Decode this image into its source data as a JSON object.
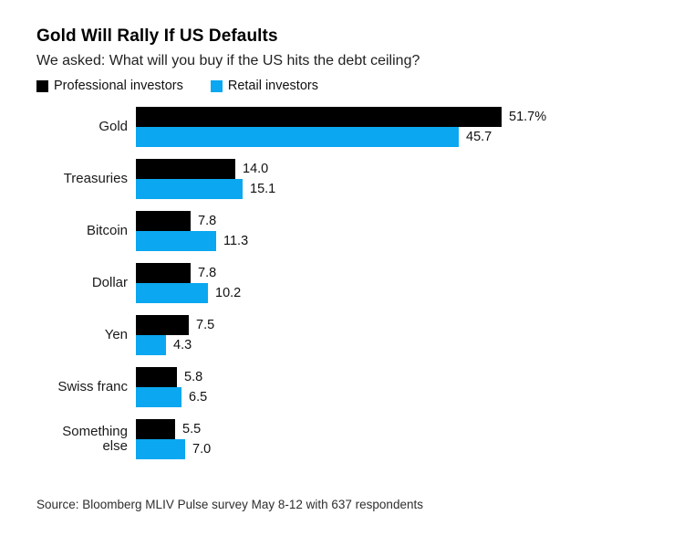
{
  "header": {
    "title": "Gold Will Rally If US Defaults",
    "subtitle": "We asked: What will you buy if the US hits the debt ceiling?"
  },
  "legend": {
    "professional": {
      "label": "Professional investors",
      "color": "#000000"
    },
    "retail": {
      "label": "Retail investors",
      "color": "#0BA7F0"
    }
  },
  "chart_data": {
    "type": "bar",
    "orientation": "horizontal",
    "title": "Gold Will Rally If US Defaults",
    "subtitle": "We asked: What will you buy if the US hits the debt ceiling?",
    "categories": [
      "Gold",
      "Treasuries",
      "Bitcoin",
      "Dollar",
      "Yen",
      "Swiss franc",
      "Something else"
    ],
    "series": [
      {
        "name": "Professional investors",
        "color": "#000000",
        "values": [
          51.7,
          14.0,
          7.8,
          7.8,
          7.5,
          5.8,
          5.5
        ],
        "labels": [
          "51.7%",
          "14.0",
          "7.8",
          "7.8",
          "7.5",
          "5.8",
          "5.5"
        ]
      },
      {
        "name": "Retail investors",
        "color": "#0BA7F0",
        "values": [
          45.7,
          15.1,
          11.3,
          10.2,
          4.3,
          6.5,
          7.0
        ],
        "labels": [
          "45.7",
          "15.1",
          "11.3",
          "10.2",
          "4.3",
          "6.5",
          "7.0"
        ]
      }
    ],
    "xlim": [
      0,
      55
    ],
    "value_unit": "%",
    "grid": false,
    "legend_position": "top-left"
  },
  "footer": {
    "source": "Source: Bloomberg MLIV Pulse survey May 8-12 with 637 respondents"
  }
}
